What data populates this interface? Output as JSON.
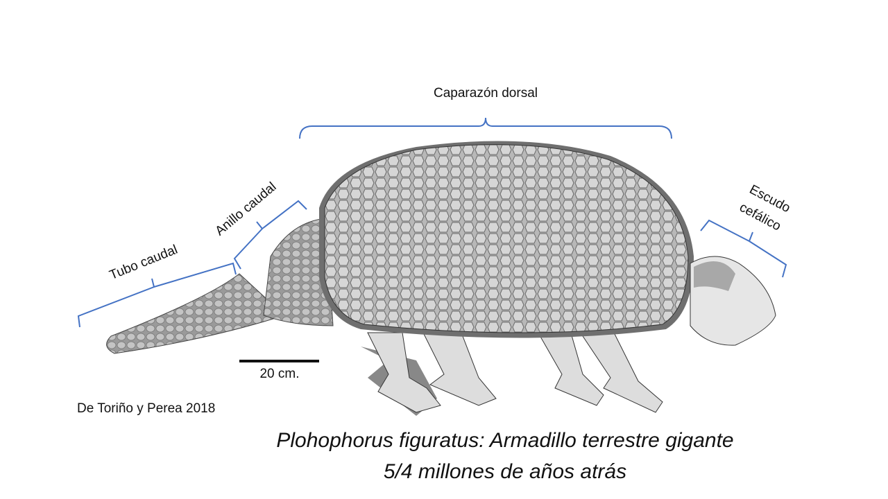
{
  "labels": {
    "carapace": "Caparazón dorsal",
    "head_shield": [
      "Escudo",
      "cefálico"
    ],
    "caudal_ring": "Anillo caudal",
    "caudal_tube": "Tubo caudal"
  },
  "scale_bar": "20 cm.",
  "credit": "De Toriño y Perea 2018",
  "caption": [
    "Plohophorus figuratus: Armadillo terrestre gigante",
    "5/4 millones de años atrás"
  ]
}
